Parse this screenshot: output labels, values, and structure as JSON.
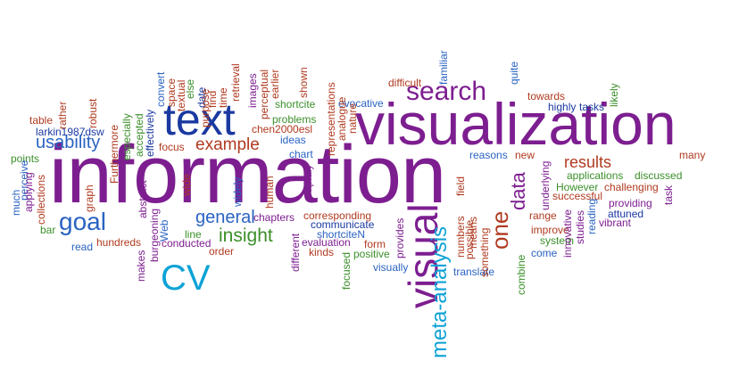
{
  "words": {
    "information": "information",
    "visualization": "visualization",
    "text": "text",
    "search": "search",
    "goal": "goal",
    "visual": "visual",
    "meta_analysis": "meta-analysis",
    "cv": "CV",
    "example": "example",
    "usability": "usability",
    "insight": "insight",
    "general": "general",
    "results": "results",
    "data": "data",
    "one": "one",
    "larkin1987dsw": "larkin1987dsw",
    "table": "table",
    "rather": "rather",
    "robust": "robust",
    "furthermore": "Furthermore",
    "especially": "especially",
    "accepted": "accepted",
    "effectively": "effectively",
    "convert": "convert",
    "space": "space",
    "textual": "textual",
    "else": "else",
    "date": "date",
    "find": "find",
    "time": "time",
    "retrieval": "retrieval",
    "purpose": "purpose",
    "images": "images",
    "perceptual": "perceptual",
    "earlier": "earlier",
    "shown": "shown",
    "shortcite": "shortcite",
    "problems": "problems",
    "chen2000esl": "chen2000esl",
    "ideas": "ideas",
    "chart": "chart",
    "representations": "representations",
    "analogue": "analogue",
    "nature": "nature",
    "evocative": "evocative",
    "difficult": "difficult",
    "familiar": "familiar",
    "quite": "quite",
    "towards": "towards",
    "highly": "highly",
    "tasks": "tasks",
    "likely": "likely",
    "many": "many",
    "reasons": "reasons",
    "new": "new",
    "applications": "applications",
    "discussed": "discussed",
    "however": "However",
    "challenging": "challenging",
    "successful": "successful",
    "task": "task",
    "providing": "providing",
    "attuned": "attuned",
    "vibrant": "vibrant",
    "reading": "reading",
    "studies": "studies",
    "innovative": "innovative",
    "underlying": "underlying",
    "range": "range",
    "improve": "improve",
    "system": "system",
    "come": "come",
    "combine": "combine",
    "something": "something",
    "means": "means",
    "possible": "possible",
    "numbers": "numbers",
    "field": "field",
    "translate": "translate",
    "provides": "provides",
    "visually": "visually",
    "positive": "positive",
    "focused": "focused",
    "form": "form",
    "communicate": "communicate",
    "shortciten": "shortciteN",
    "corresponding": "corresponding",
    "evaluation": "evaluation",
    "kinds": "kinds",
    "rapidly": "rapidly",
    "different": "different",
    "chapters": "chapters",
    "human": "human",
    "widely": "widely",
    "wide": "wide",
    "focus": "focus",
    "graph": "graph",
    "abstract": "abstract",
    "web": "Web",
    "burgeoning": "burgeoning",
    "line": "line",
    "conducted": "conducted",
    "order": "order",
    "makes": "makes",
    "hundreds": "hundreds",
    "read": "read",
    "bar": "bar",
    "collections": "collections",
    "perceive": "perceive",
    "applying": "applying",
    "much": "much",
    "points": "points"
  }
}
